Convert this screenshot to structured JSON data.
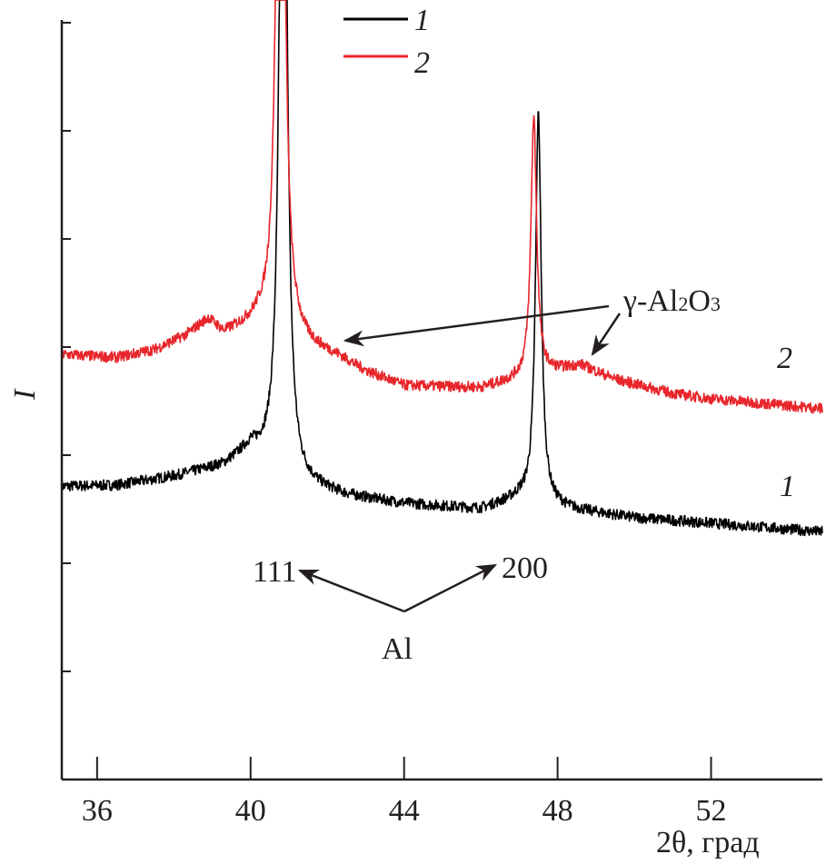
{
  "chart_data": {
    "type": "line",
    "title": "",
    "xlabel": "2θ, град",
    "ylabel": "I",
    "xlim": [
      35.08,
      54.9
    ],
    "ylim": [
      0,
      7
    ],
    "xticks": [
      36,
      40,
      44,
      48,
      52
    ],
    "xtick_labels": [
      "36",
      "40",
      "44",
      "48",
      "52"
    ],
    "yticks": [
      1,
      2,
      3,
      4,
      5,
      6,
      7
    ],
    "grid": false,
    "legend": {
      "placement": "top-center",
      "entries": [
        "1",
        "2"
      ]
    },
    "series": [
      {
        "name": "1",
        "color": "#000000",
        "baseline": [
          [
            35.08,
            2.71
          ],
          [
            36.5,
            2.72
          ],
          [
            38,
            2.8
          ],
          [
            39.3,
            2.9
          ],
          [
            40,
            3.05
          ],
          [
            41.3,
            2.72
          ],
          [
            42.5,
            2.62
          ],
          [
            44,
            2.55
          ],
          [
            46,
            2.5
          ],
          [
            47,
            2.6
          ],
          [
            48.3,
            2.5
          ],
          [
            50,
            2.42
          ],
          [
            52,
            2.37
          ],
          [
            54.9,
            2.29
          ]
        ],
        "peaks": [
          [
            40.85,
            9.0,
            0.1
          ],
          [
            47.5,
            3.6,
            0.09
          ]
        ],
        "noise": 0.05
      },
      {
        "name": "2",
        "color": "#e8262b",
        "baseline": [
          [
            35.08,
            3.93
          ],
          [
            36.5,
            3.9
          ],
          [
            37.5,
            3.97
          ],
          [
            38.3,
            4.1
          ],
          [
            38.9,
            4.25
          ],
          [
            39.3,
            4.12
          ],
          [
            40.2,
            4.22
          ],
          [
            41.5,
            4.0
          ],
          [
            42.3,
            3.9
          ],
          [
            43,
            3.77
          ],
          [
            44,
            3.64
          ],
          [
            46,
            3.62
          ],
          [
            47,
            3.7
          ],
          [
            48.6,
            3.83
          ],
          [
            49.5,
            3.7
          ],
          [
            51,
            3.57
          ],
          [
            52,
            3.52
          ],
          [
            54.9,
            3.43
          ]
        ],
        "peaks": [
          [
            40.78,
            9.0,
            0.1
          ],
          [
            47.38,
            2.4,
            0.09
          ]
        ],
        "noise": 0.05
      }
    ],
    "annotations": {
      "gamma": {
        "text": "γ-Al",
        "sub1": "2",
        "mid": "O",
        "sub2": "3",
        "targets": [
          [
            42.2,
            4.0
          ],
          [
            48.8,
            3.9
          ]
        ]
      },
      "al": {
        "text": "Al",
        "targets": [
          "111",
          "200"
        ]
      },
      "hkl_111": "111",
      "hkl_200": "200",
      "curve_label_1": "1",
      "curve_label_2": "2"
    }
  }
}
